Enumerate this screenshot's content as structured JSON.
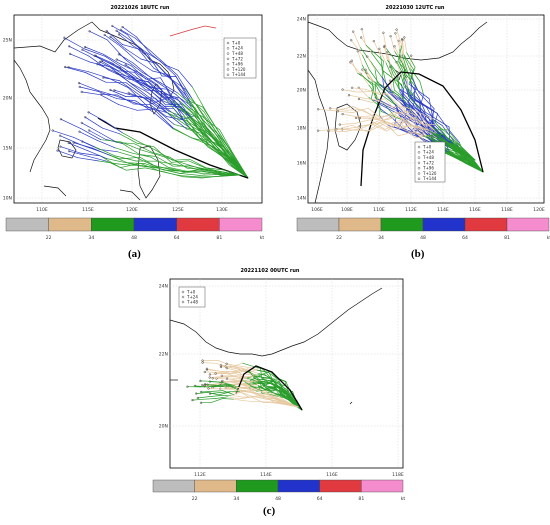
{
  "figure": {
    "panels": [
      {
        "id": "a",
        "caption": "(a)",
        "title": "20221026 18UTC run",
        "lat_ticks": [
          "25N",
          "20N",
          "15N",
          "10N"
        ],
        "lon_ticks": [
          "110E",
          "115E",
          "120E",
          "125E",
          "130E"
        ],
        "legend": [
          "T+0",
          "T+24",
          "T+48",
          "T+72",
          "T+96",
          "T+120",
          "T+144"
        ],
        "colorbar_labels": [
          "22",
          "34",
          "48",
          "64",
          "81",
          "kt"
        ]
      },
      {
        "id": "b",
        "caption": "(b)",
        "title": "20221030 12UTC run",
        "lat_ticks": [
          "24N",
          "22N",
          "20N",
          "18N",
          "16N",
          "14N"
        ],
        "lon_ticks": [
          "106E",
          "108E",
          "110E",
          "112E",
          "114E",
          "116E",
          "118E",
          "120E"
        ],
        "legend": [
          "T+0",
          "T+24",
          "T+48",
          "T+72",
          "T+96",
          "T+120",
          "T+144"
        ],
        "colorbar_labels": [
          "22",
          "34",
          "48",
          "64",
          "81",
          "kt"
        ]
      },
      {
        "id": "c",
        "caption": "(c)",
        "title": "20221102 00UTC run",
        "lat_ticks": [
          "24N",
          "22N",
          "20N"
        ],
        "lon_ticks": [
          "112E",
          "114E",
          "116E",
          "118E"
        ],
        "legend": [
          "T+0",
          "T+24",
          "T+48"
        ],
        "colorbar_labels": [
          "22",
          "34",
          "48",
          "64",
          "81",
          "kt"
        ]
      }
    ],
    "intensity_colors": [
      "#bdbdbd",
      "#dfb98a",
      "#1f9a1f",
      "#2233cc",
      "#e0393f",
      "#f48ccd"
    ],
    "track_colors": {
      "weak": "#e6c9a1",
      "ts": "#2a9d2a",
      "sts": "#2b3bc6",
      "ensemble_mean": "#000000",
      "early": "#d43c3c"
    }
  }
}
